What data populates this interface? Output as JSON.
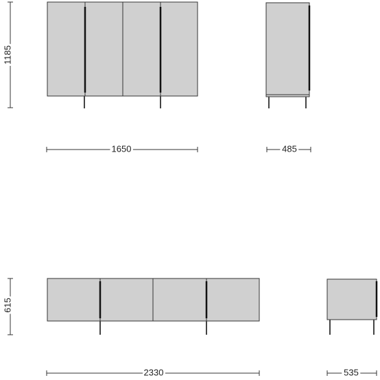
{
  "drawings": [
    {
      "height": "1185",
      "width": "1650",
      "depth": "485"
    },
    {
      "height": "615",
      "width": "2330",
      "depth": "535"
    }
  ]
}
